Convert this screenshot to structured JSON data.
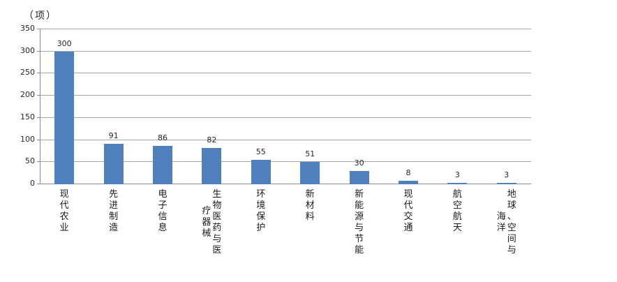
{
  "chart_data": {
    "type": "bar",
    "unit_label": "（项）",
    "categories": [
      "现代农业",
      "先进制造",
      "电子信息",
      "生物医药与医疗器械",
      "环境保护",
      "新材料",
      "新能源与节能",
      "现代交通",
      "航空航天",
      "地球、空间与海洋"
    ],
    "category_lines": [
      [
        "现代农业"
      ],
      [
        "先进制造"
      ],
      [
        "电子信息"
      ],
      [
        "生物医药与医",
        "疗器械"
      ],
      [
        "环境保护"
      ],
      [
        "新材料"
      ],
      [
        "新能源与节能"
      ],
      [
        "现代交通"
      ],
      [
        "航空航天"
      ],
      [
        "地球、空间与",
        "海洋"
      ]
    ],
    "values": [
      300,
      91,
      86,
      82,
      55,
      51,
      30,
      8,
      3,
      3
    ],
    "title": "",
    "xlabel": "",
    "ylabel": "（项）",
    "ylim": [
      0,
      350
    ],
    "yticks": [
      0,
      50,
      100,
      150,
      200,
      250,
      300,
      350
    ],
    "grid": true,
    "legend": false,
    "bar_color": "#4d80bc",
    "gridline_color": "#a6a6a6",
    "axis_color": "#8c8c8c",
    "text_color": "#262626"
  }
}
